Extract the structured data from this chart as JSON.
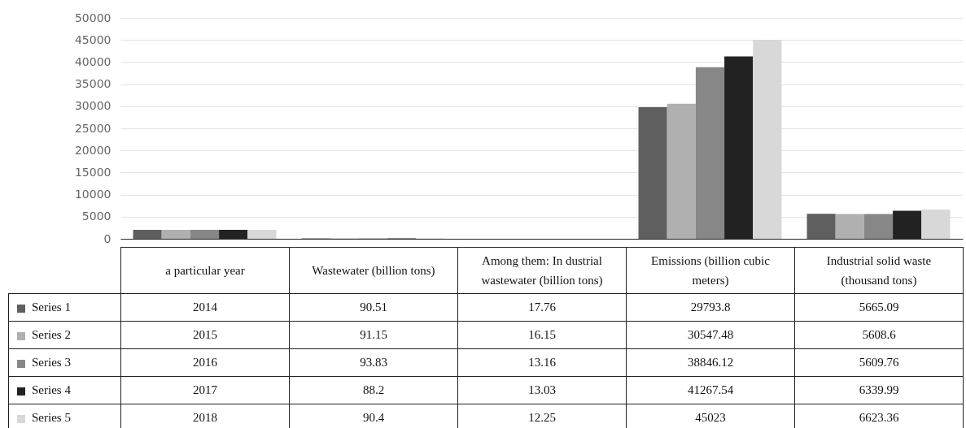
{
  "chart_data": {
    "type": "bar",
    "categories": [
      "a particular year",
      "Wastewater (billion tons)",
      "Among them: In dustrial wastewater (billion tons)",
      "Emissions (billion cubic meters)",
      "Industrial solid waste (thousand tons)"
    ],
    "series": [
      {
        "name": "Series 1",
        "color": "#5f5f5f",
        "values": [
          2014,
          90.51,
          17.76,
          29793.8,
          5665.09
        ]
      },
      {
        "name": "Series 2",
        "color": "#b0b0b0",
        "values": [
          2015,
          91.15,
          16.15,
          30547.48,
          5608.6
        ]
      },
      {
        "name": "Series 3",
        "color": "#878787",
        "values": [
          2016,
          93.83,
          13.16,
          38846.12,
          5609.76
        ]
      },
      {
        "name": "Series 4",
        "color": "#222222",
        "values": [
          2017,
          88.2,
          13.03,
          41267.54,
          6339.99
        ]
      },
      {
        "name": "Series 5",
        "color": "#d8d8d8",
        "values": [
          2018,
          90.4,
          12.25,
          45023,
          6623.36
        ]
      }
    ],
    "ylim": [
      0,
      50000
    ],
    "yticks": [
      0,
      5000,
      10000,
      15000,
      20000,
      25000,
      30000,
      35000,
      40000,
      45000,
      50000
    ],
    "grid": "y",
    "legend": "bottom",
    "data_labels": true
  }
}
